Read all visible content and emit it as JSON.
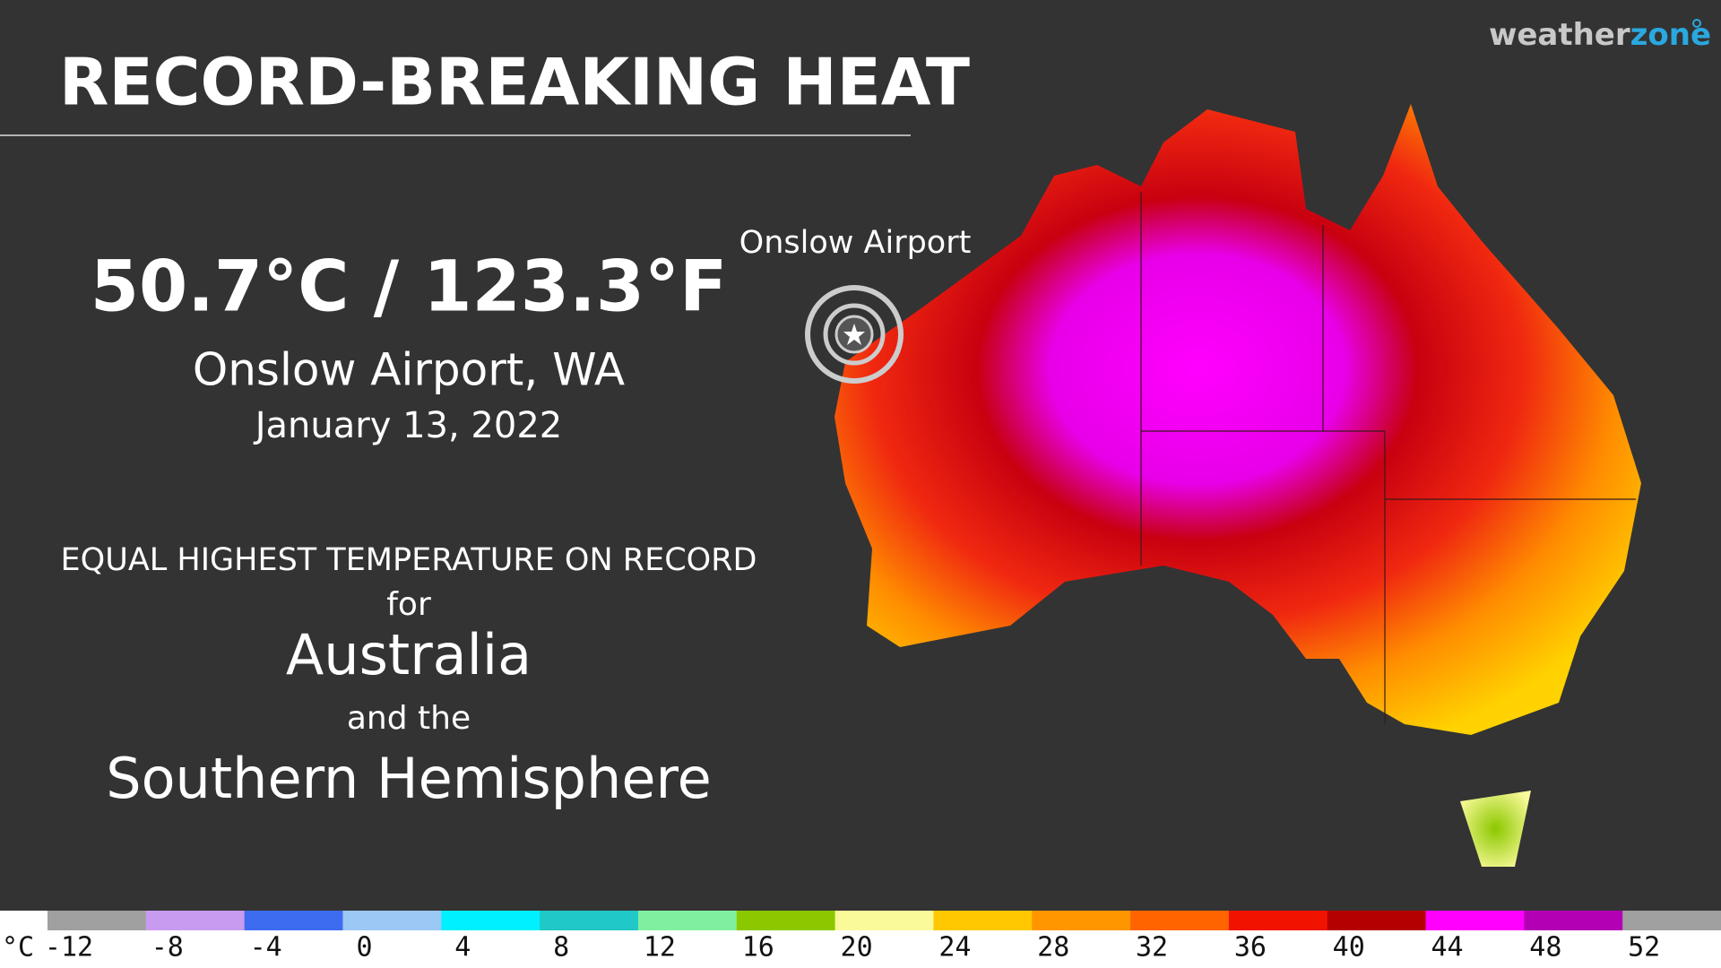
{
  "header": {
    "title": "RECORD-BREAKING HEAT",
    "logo": {
      "brand": "weather",
      "brand_accent": "zone"
    }
  },
  "record": {
    "temperature": "50.7°C / 123.3°F",
    "location": "Onslow Airport, WA",
    "date": "January 13, 2022"
  },
  "statement": [
    "EQUAL HIGHEST TEMPERATURE ON RECORD",
    "for",
    "Australia",
    "and the",
    "Southern Hemisphere"
  ],
  "map": {
    "marker_label": "Onslow Airport"
  },
  "legend": {
    "unit": "°C",
    "ticks": [
      -12,
      -8,
      -4,
      0,
      4,
      8,
      12,
      16,
      20,
      24,
      28,
      32,
      36,
      40,
      44,
      48,
      52
    ],
    "colors": [
      "#a0a0a0",
      "#c89bf0",
      "#3e6cf0",
      "#9cc8f5",
      "#00f0ff",
      "#20c8c8",
      "#80f0a0",
      "#8cc800",
      "#fafa9b",
      "#ffc800",
      "#ff9600",
      "#ff6400",
      "#f01400",
      "#b40000",
      "#ff00ff",
      "#b400b4",
      "#a0a0a0"
    ]
  }
}
